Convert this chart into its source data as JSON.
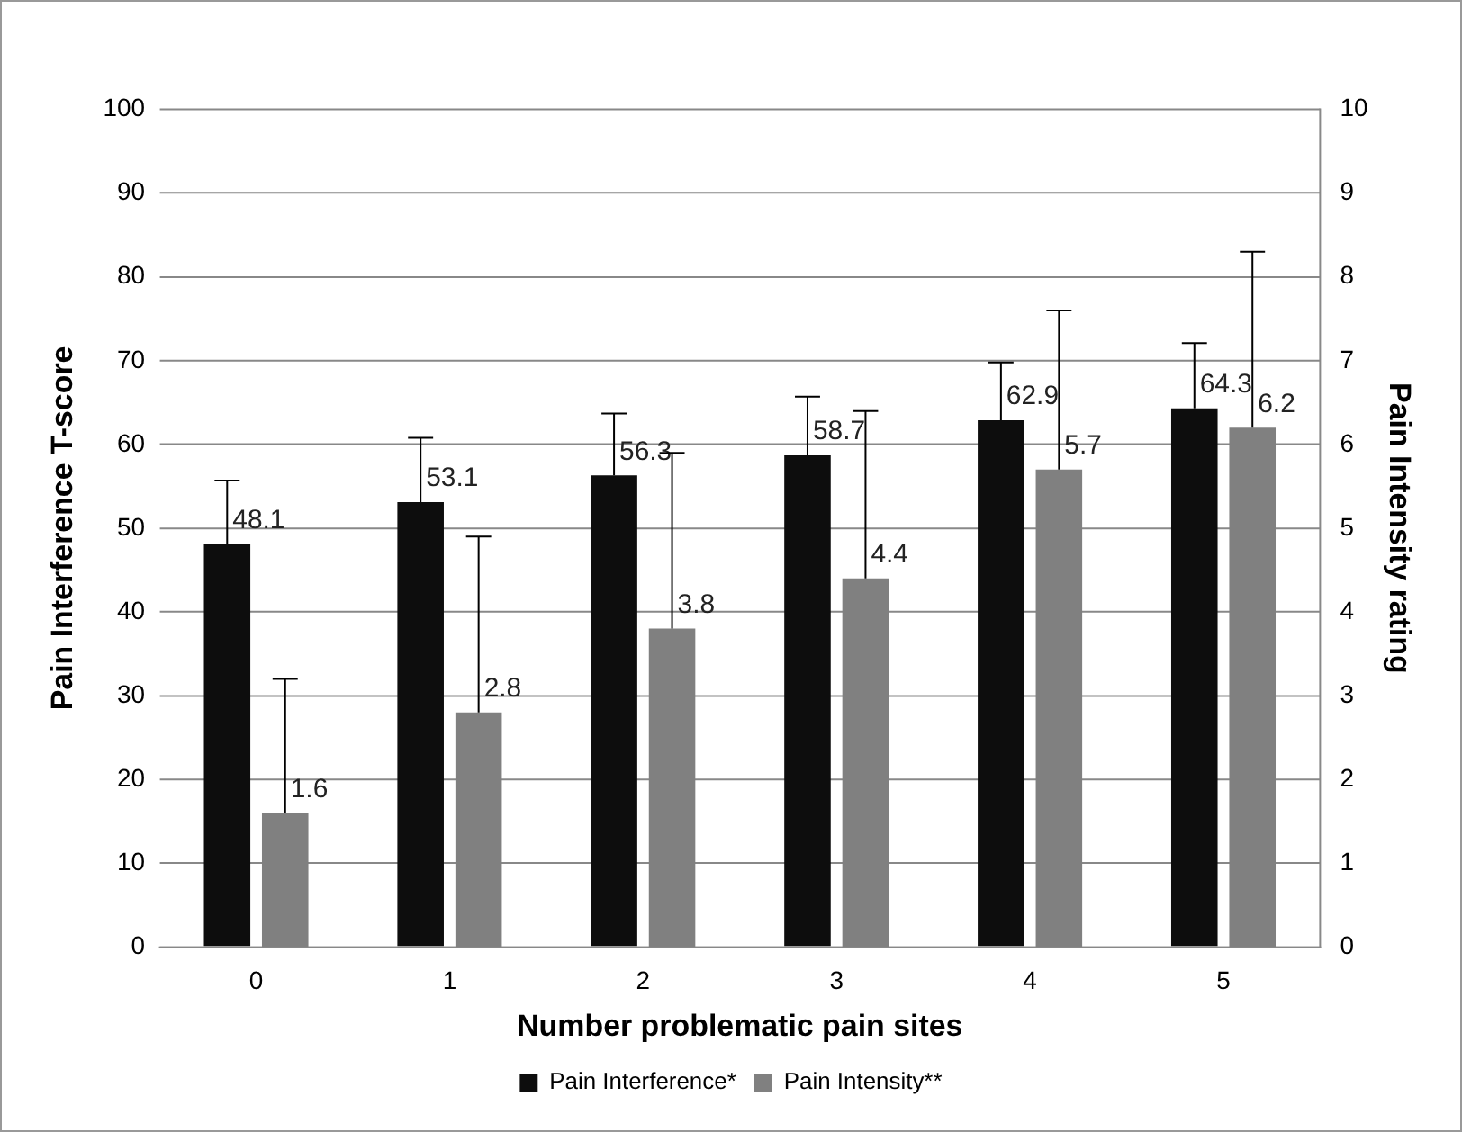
{
  "chart_data": {
    "type": "bar",
    "xlabel": "Number problematic pain sites",
    "ylabel": "Pain Interference T-score",
    "y2label": "Pain Intensity rating",
    "categories": [
      "0",
      "1",
      "2",
      "3",
      "4",
      "5"
    ],
    "series": [
      {
        "name": "Pain Interference*",
        "color": "#0d0d0d",
        "values": [
          48.1,
          53.1,
          56.3,
          58.7,
          62.9,
          64.3
        ],
        "errors": [
          [
            48.1,
            55.7
          ],
          [
            53.1,
            60.8
          ],
          [
            56.3,
            63.7
          ],
          [
            58.7,
            65.7
          ],
          [
            62.9,
            69.8
          ],
          [
            64.3,
            72.1
          ]
        ]
      },
      {
        "name": "Pain Intensity**",
        "color": "#808080",
        "axis": "y2",
        "values": [
          1.6,
          2.8,
          3.8,
          4.4,
          5.7,
          6.2
        ],
        "errors": [
          [
            1.6,
            3.2
          ],
          [
            2.8,
            4.9
          ],
          [
            3.8,
            5.9
          ],
          [
            4.4,
            6.4
          ],
          [
            5.7,
            7.6
          ],
          [
            6.2,
            8.3
          ]
        ]
      }
    ],
    "ylim": [
      0,
      100
    ],
    "yticks": [
      0,
      10,
      20,
      30,
      40,
      50,
      60,
      70,
      80,
      90,
      100
    ],
    "y2lim": [
      0,
      10
    ],
    "y2ticks": [
      0,
      1,
      2,
      3,
      4,
      5,
      6,
      7,
      8,
      9,
      10
    ],
    "data_labels": true,
    "grid": "y",
    "legend": "bottom"
  }
}
